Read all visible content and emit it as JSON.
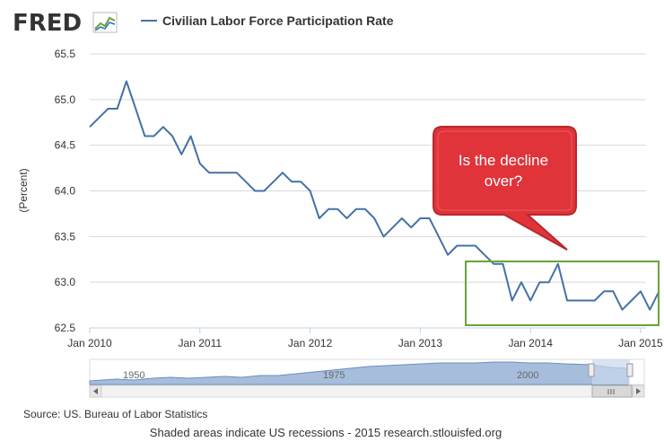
{
  "logo": {
    "text": "FRED"
  },
  "legend": {
    "label": "Civilian Labor Force Participation Rate"
  },
  "chart_data": {
    "type": "line",
    "title": "Civilian Labor Force Participation Rate",
    "ylabel": "(Percent)",
    "xlabel": "",
    "ylim": [
      62.5,
      65.5
    ],
    "yticks": [
      "62.5",
      "63.0",
      "63.5",
      "64.0",
      "64.5",
      "65.0",
      "65.5"
    ],
    "xticks": [
      "Jan 2010",
      "Jan 2011",
      "Jan 2012",
      "Jan 2013",
      "Jan 2014",
      "Jan 2015"
    ],
    "series": [
      {
        "name": "Civilian Labor Force Participation Rate",
        "color": "#4572A7",
        "start": "Jan 2010",
        "frequency": "monthly",
        "values": [
          64.7,
          64.8,
          64.9,
          64.9,
          65.2,
          64.9,
          64.6,
          64.6,
          64.7,
          64.6,
          64.4,
          64.6,
          64.3,
          64.2,
          64.2,
          64.2,
          64.2,
          64.1,
          64.0,
          64.0,
          64.1,
          64.2,
          64.1,
          64.1,
          64.0,
          63.7,
          63.8,
          63.8,
          63.7,
          63.8,
          63.8,
          63.7,
          63.5,
          63.6,
          63.7,
          63.6,
          63.7,
          63.7,
          63.5,
          63.3,
          63.4,
          63.4,
          63.4,
          63.3,
          63.2,
          63.2,
          62.8,
          63.0,
          62.8,
          63.0,
          63.0,
          63.2,
          62.8,
          62.8,
          62.8,
          62.8,
          62.9,
          62.9,
          62.7,
          62.8,
          62.9,
          62.7,
          62.9
        ]
      }
    ],
    "annotations": [
      {
        "type": "callout",
        "text_lines": [
          "Is the decline",
          "over?"
        ],
        "color": "#E0343A"
      },
      {
        "type": "highlight-box",
        "color": "#6AA33A",
        "x_range": [
          "Jul 2013",
          "Feb 2015"
        ],
        "y_range": [
          62.5,
          63.25
        ]
      }
    ]
  },
  "navigator": {
    "labels": [
      "1950",
      "1975",
      "2000"
    ]
  },
  "source": "Source: US. Bureau of Labor Statistics",
  "footer": "Shaded areas indicate US recessions - 2015 research.stlouisfed.org",
  "colors": {
    "series": "#4572A7",
    "callout": "#E0343A",
    "highlight": "#6AA33A",
    "navigator_fill": "#A6BEDC"
  }
}
